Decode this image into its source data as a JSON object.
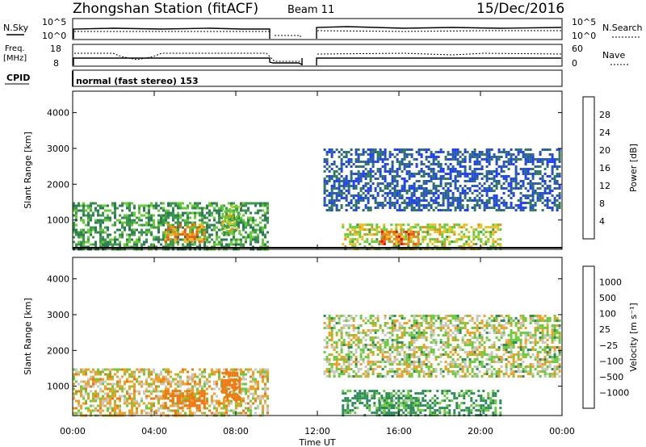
{
  "header": {
    "station": "Zhongshan Station (fitACF)",
    "beam": "Beam 11",
    "date": "15/Dec/2016"
  },
  "top_panel": {
    "left_label": "N.Sky",
    "left_ticks": [
      "10^5",
      "10^0"
    ],
    "right_label": "N.Search",
    "right_ticks": [
      "10^5",
      "10^0"
    ]
  },
  "freq_panel": {
    "left_label_1": "Freq.",
    "left_label_2": "[MHz]",
    "left_ticks": [
      "18",
      "8"
    ],
    "right_label": "Nave",
    "right_ticks": [
      "60",
      "0"
    ]
  },
  "cpid": {
    "label": "CPID",
    "mode": "normal (fast stereo) 153"
  },
  "power_panel": {
    "ylabel": "Slant Range [km]",
    "colorbar_label": "Power [dB]",
    "colorbar_ticks": [
      "28",
      "24",
      "20",
      "16",
      "12",
      "8",
      "4"
    ],
    "colors": [
      "#1f3fff",
      "#2a5ab0",
      "#2e7a5a",
      "#3c9a4a",
      "#66cc33",
      "#e8c020",
      "#f08a10",
      "#f05a10",
      "#e01010"
    ]
  },
  "velocity_panel": {
    "ylabel": "Slant Range [km]",
    "colorbar_label": "Velocity [m s⁻¹]",
    "colorbar_ticks": [
      "1000",
      "500",
      "100",
      "25",
      "−25",
      "−100",
      "−500",
      "−1000"
    ],
    "colors": [
      "#1a4fb0",
      "#2e6a8a",
      "#2e8a5a",
      "#6acc3a",
      "#c8c8c0",
      "#f0a020",
      "#f07810",
      "#e03a10",
      "#e01010"
    ]
  },
  "x_axis": {
    "label": "Time UT",
    "ticks": [
      "00:00",
      "04:00",
      "08:00",
      "12:00",
      "16:00",
      "20:00",
      "00:00"
    ]
  },
  "chart_data": {
    "type": "heatmap",
    "title": "Zhongshan Station (fitACF)  Beam 11  15/Dec/2016",
    "xlabel": "Time UT",
    "ylabel": "Slant Range [km]",
    "x_range_hours": [
      0,
      24
    ],
    "y_range_km": [
      180,
      4600
    ],
    "y_ticks": [
      1000,
      2000,
      3000,
      4000
    ],
    "data_gap_hours": [
      9.8,
      11.8
    ],
    "echo_regions": [
      {
        "t0": 0.0,
        "t1": 9.6,
        "r0": 200,
        "r1": 1500,
        "power_db": 14,
        "velocity": -25
      },
      {
        "t0": 4.5,
        "t1": 6.5,
        "r0": 400,
        "r1": 900,
        "power_db": 26,
        "velocity": -300
      },
      {
        "t0": 7.3,
        "t1": 8.2,
        "r0": 600,
        "r1": 1400,
        "power_db": 20,
        "velocity": -400
      },
      {
        "t0": 12.3,
        "t1": 23.9,
        "r0": 1300,
        "r1": 3000,
        "power_db": 6,
        "velocity": 20
      },
      {
        "t0": 13.2,
        "t1": 21.0,
        "r0": 200,
        "r1": 900,
        "power_db": 20,
        "velocity": 150
      },
      {
        "t0": 15.0,
        "t1": 17.0,
        "r0": 300,
        "r1": 700,
        "power_db": 28,
        "velocity": 100
      }
    ]
  }
}
